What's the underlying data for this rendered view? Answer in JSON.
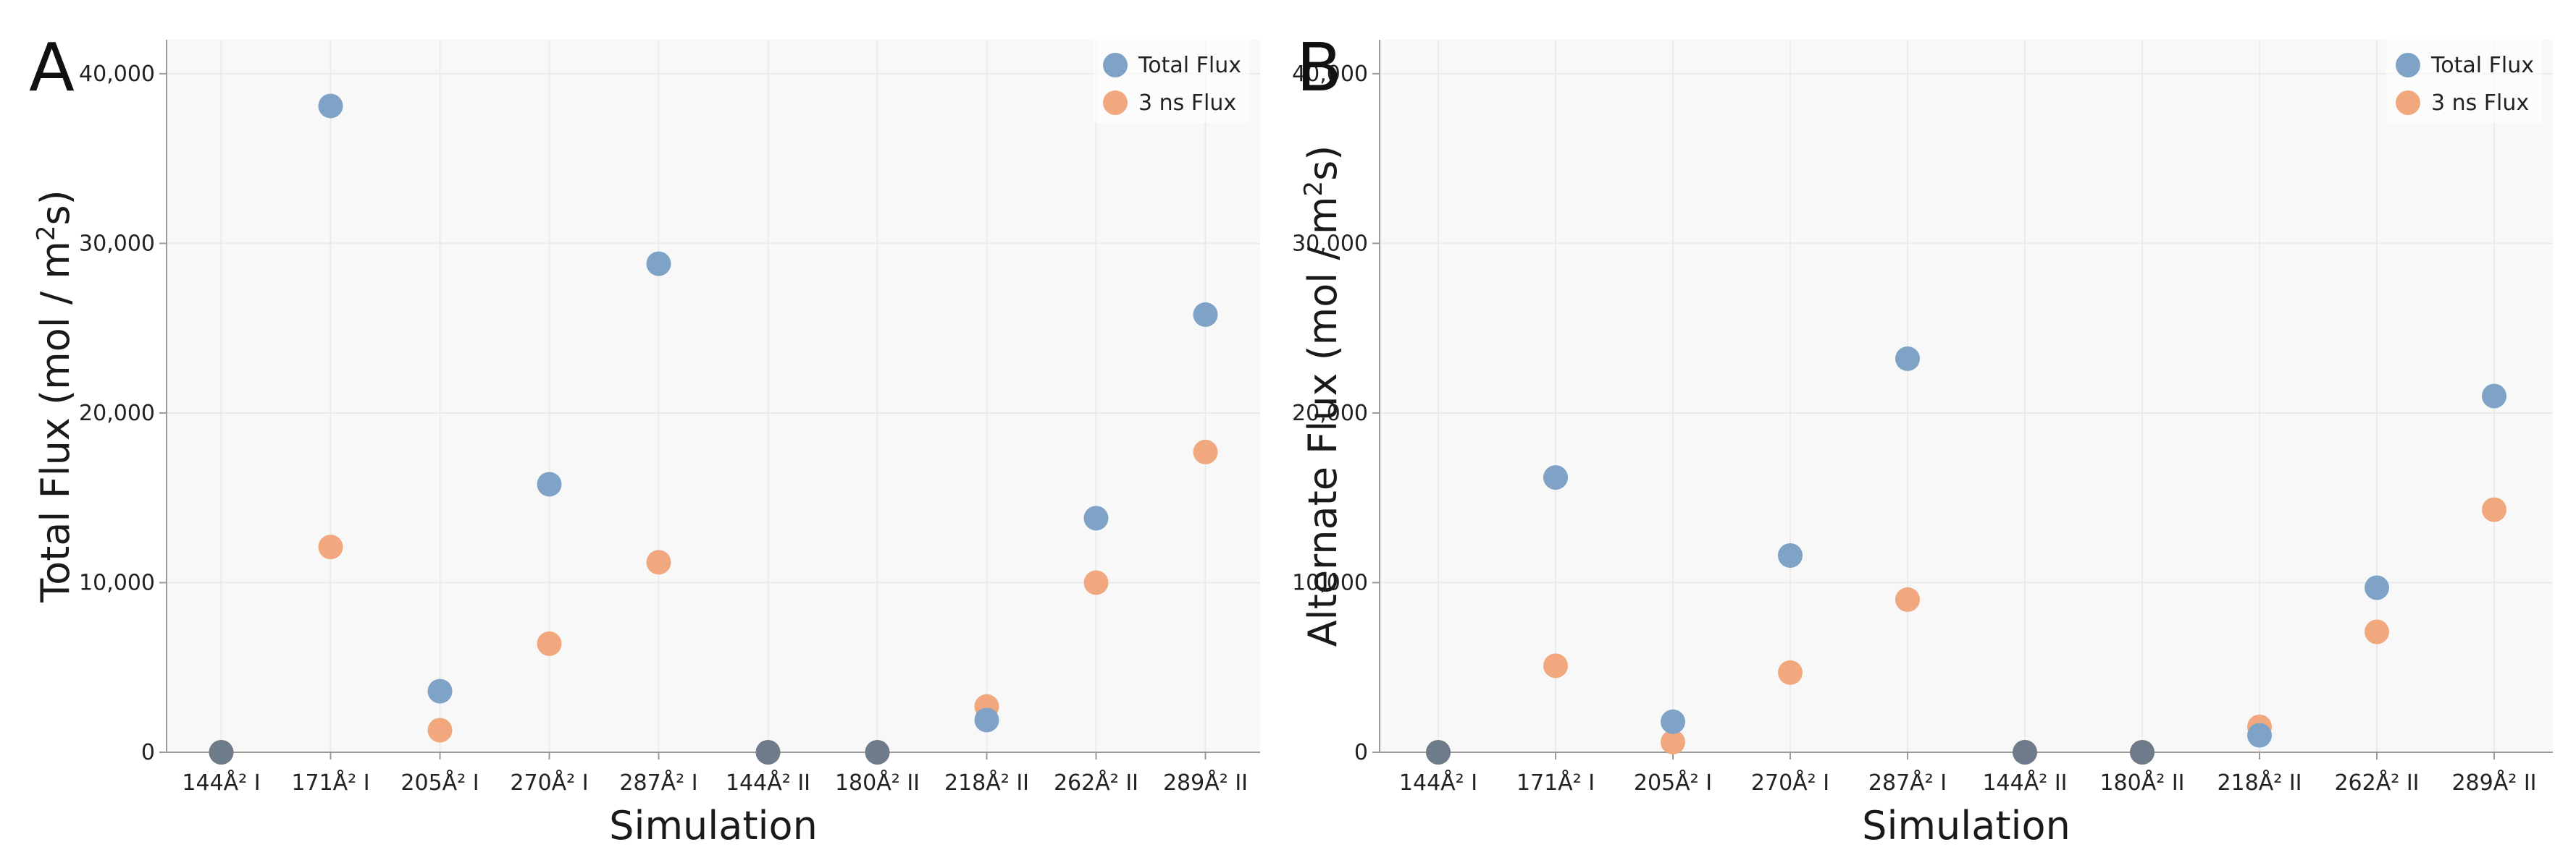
{
  "colors": {
    "total": "#7ea3c6",
    "ns3": "#f2a87e",
    "overlap": "#6e7b8a",
    "plot_bg": "#f8f8f8",
    "grid": "#ebebeb",
    "axis": "#9a9a9a"
  },
  "chart_data": [
    {
      "panel": "A",
      "type": "scatter",
      "categories": [
        "144Å² I",
        "171Å² I",
        "205Å² I",
        "270Å² I",
        "287Å² I",
        "144Å² II",
        "180Å² II",
        "218Å² II",
        "262Å² II",
        "289Å² II"
      ],
      "xlabel": "Simulation",
      "ylabel": {
        "main": "Total Flux (mol / m",
        "sup": "2",
        "tail": "s)"
      },
      "ylim": [
        0,
        42000
      ],
      "yticks": [
        0,
        10000,
        20000,
        30000,
        40000
      ],
      "ytick_labels": [
        "0",
        "10,000",
        "20,000",
        "30,000",
        "40,000"
      ],
      "grid": true,
      "legend_position": "top-right",
      "series": [
        {
          "name": "Total Flux",
          "values": [
            0,
            38100,
            3600,
            15800,
            28800,
            0,
            0,
            1900,
            13800,
            25800
          ]
        },
        {
          "name": "3 ns Flux",
          "values": [
            0,
            12100,
            1300,
            6400,
            11200,
            0,
            0,
            2700,
            10000,
            17700
          ]
        }
      ]
    },
    {
      "panel": "B",
      "type": "scatter",
      "categories": [
        "144Å² I",
        "171Å² I",
        "205Å² I",
        "270Å² I",
        "287Å² I",
        "144Å² II",
        "180Å² II",
        "218Å² II",
        "262Å² II",
        "289Å² II"
      ],
      "xlabel": "Simulation",
      "ylabel": {
        "main": "Alternate Flux (mol / m",
        "sup": "2",
        "tail": "s)"
      },
      "ylim": [
        0,
        42000
      ],
      "yticks": [
        0,
        10000,
        20000,
        30000,
        40000
      ],
      "ytick_labels": [
        "0",
        "10,000",
        "20,000",
        "30,000",
        "40,000"
      ],
      "grid": true,
      "legend_position": "top-right",
      "series": [
        {
          "name": "Total Flux",
          "values": [
            0,
            16200,
            1800,
            11600,
            23200,
            0,
            0,
            1000,
            9700,
            21000
          ]
        },
        {
          "name": "3 ns Flux",
          "values": [
            0,
            5100,
            600,
            4700,
            9000,
            0,
            0,
            1500,
            7100,
            14300
          ]
        }
      ]
    }
  ]
}
